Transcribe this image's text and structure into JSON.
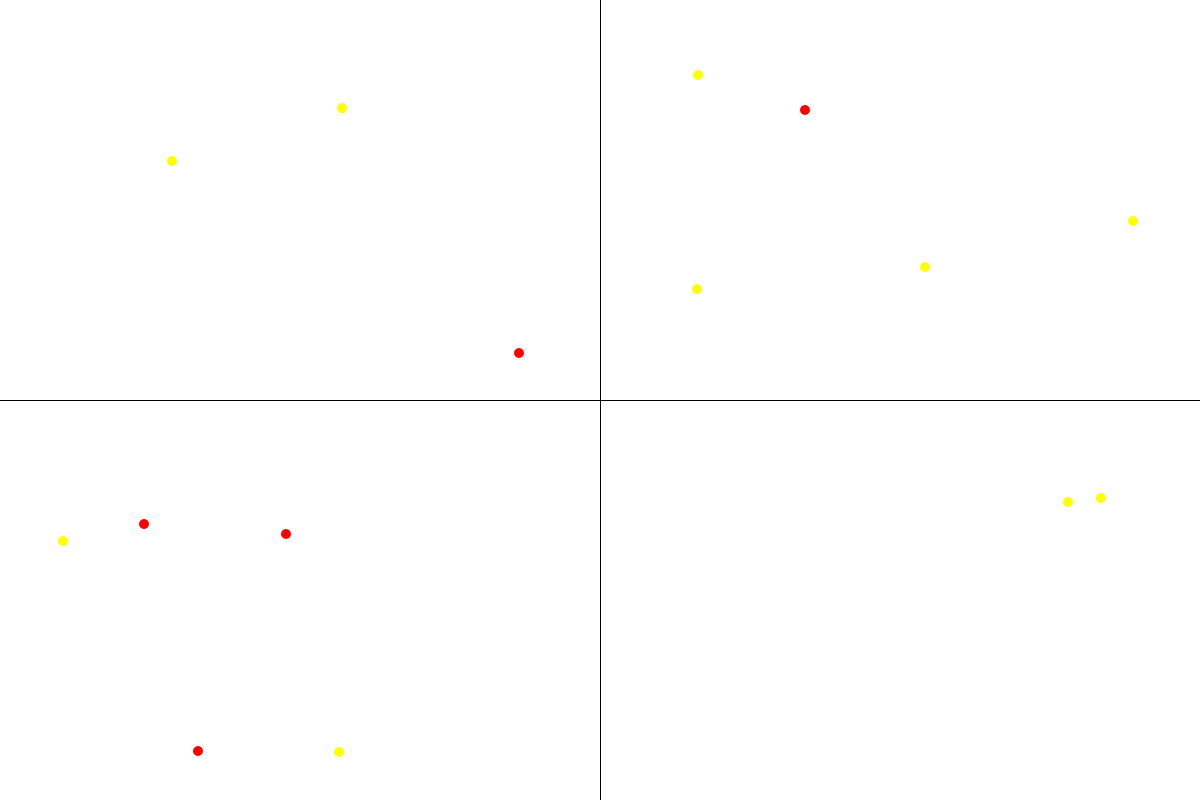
{
  "colors": {
    "background": "#ffffff",
    "divider": "#000000",
    "red": "#ff0000",
    "yellow": "#ffff00"
  },
  "quadrants": [
    {
      "id": "top-left",
      "dots": [
        {
          "color": "yellow"
        },
        {
          "color": "yellow"
        },
        {
          "color": "red"
        }
      ]
    },
    {
      "id": "top-right",
      "dots": [
        {
          "color": "yellow"
        },
        {
          "color": "red"
        },
        {
          "color": "yellow"
        },
        {
          "color": "yellow"
        },
        {
          "color": "yellow"
        }
      ]
    },
    {
      "id": "bottom-left",
      "dots": [
        {
          "color": "yellow"
        },
        {
          "color": "red"
        },
        {
          "color": "red"
        },
        {
          "color": "red"
        },
        {
          "color": "yellow"
        }
      ]
    },
    {
      "id": "bottom-right",
      "dots": [
        {
          "color": "yellow"
        },
        {
          "color": "yellow"
        }
      ]
    }
  ]
}
